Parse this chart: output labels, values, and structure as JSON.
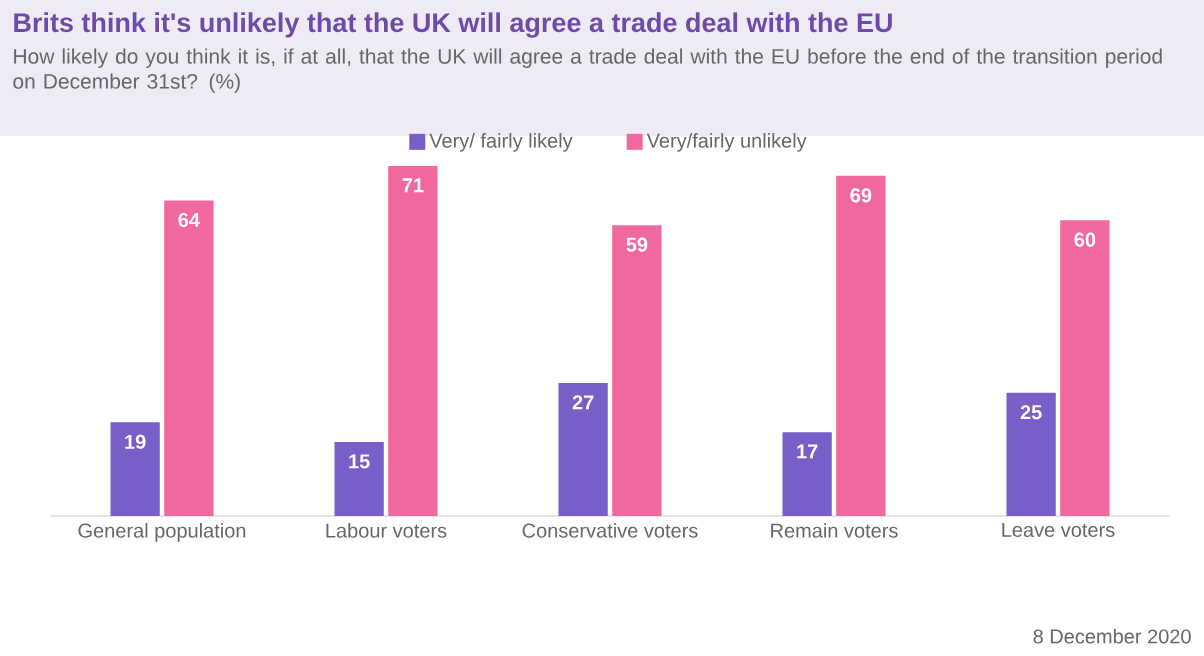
{
  "chart_data": {
    "type": "bar",
    "title": "Brits think it's unlikely that the UK will agree a trade deal with the EU",
    "subtitle": "How likely do you think it is, if at all, that the UK will agree a trade deal with the EU before the end of the transition period on December 31st? (%)",
    "categories": [
      "General population",
      "Labour voters",
      "Conservative voters",
      "Remain voters",
      "Leave voters"
    ],
    "series": [
      {
        "name": "Very/ fairly likely",
        "color": "#7a5ec8",
        "values": [
          19,
          15,
          27,
          17,
          25
        ]
      },
      {
        "name": "Very/fairly unlikely",
        "color": "#f0689e",
        "values": [
          64,
          71,
          59,
          69,
          60
        ]
      }
    ],
    "data_labels": true,
    "legend": "top",
    "annotations": [
      "8 December 2020"
    ]
  }
}
